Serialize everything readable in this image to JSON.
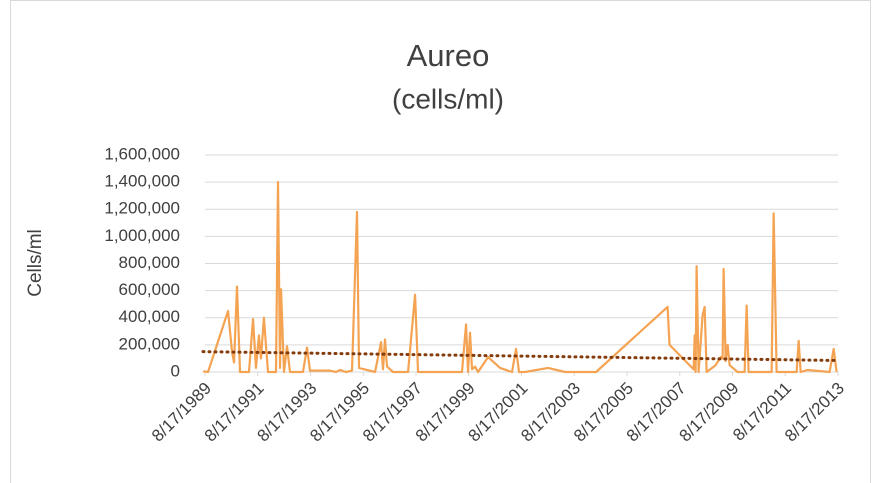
{
  "chart_data": {
    "type": "line",
    "title": "Aureo",
    "subtitle": "(cells/ml)",
    "y_label": "Cells/ml",
    "grid": true,
    "xlim": [
      "1989-08-17",
      "2013-08-17"
    ],
    "xticks": [
      {
        "value": "1989-08-17",
        "label": "8/17/1989"
      },
      {
        "value": "1991-08-17",
        "label": "8/17/1991"
      },
      {
        "value": "1993-08-17",
        "label": "8/17/1993"
      },
      {
        "value": "1995-08-17",
        "label": "8/17/1995"
      },
      {
        "value": "1997-08-17",
        "label": "8/17/1997"
      },
      {
        "value": "1999-08-17",
        "label": "8/17/1999"
      },
      {
        "value": "2001-08-17",
        "label": "8/17/2001"
      },
      {
        "value": "2003-08-17",
        "label": "8/17/2003"
      },
      {
        "value": "2005-08-17",
        "label": "8/17/2005"
      },
      {
        "value": "2007-08-17",
        "label": "8/17/2007"
      },
      {
        "value": "2009-08-17",
        "label": "8/17/2009"
      },
      {
        "value": "2011-08-17",
        "label": "8/17/2011"
      },
      {
        "value": "2013-08-17",
        "label": "8/17/2013"
      }
    ],
    "ylim": [
      0,
      1600000
    ],
    "yticks": [
      0,
      {
        "value": 200000,
        "label": "200,000"
      },
      {
        "value": 400000,
        "label": "400,000"
      },
      {
        "value": 600000,
        "label": "600,000"
      },
      {
        "value": 800000,
        "label": "800,000"
      },
      {
        "value": 1000000,
        "label": "1,000,000"
      },
      {
        "value": 1200000,
        "label": "1,200,000"
      },
      {
        "value": 1400000,
        "label": "1,400,000"
      },
      {
        "value": 1600000,
        "label": "1,600,000"
      }
    ],
    "x": [
      "1989-07-20",
      "1989-09-28",
      "1990-07-02",
      "1990-08-26",
      "1990-09-23",
      "1990-11-03",
      "1990-12-15",
      "1991-04-18",
      "1991-06-13",
      "1991-07-24",
      "1991-09-03",
      "1991-10-01",
      "1991-11-11",
      "1992-01-06",
      "1992-04-26",
      "1992-05-24",
      "1992-06-21",
      "1992-07-05",
      "1992-08-15",
      "1992-09-26",
      "1992-11-06",
      "1993-05-05",
      "1993-06-30",
      "1993-08-10",
      "1994-05-14",
      "1994-08-05",
      "1994-09-30",
      "1994-12-22",
      "1995-03-15",
      "1995-05-23",
      "1995-06-20",
      "1996-01-28",
      "1996-04-20",
      "1996-05-17",
      "1996-06-14",
      "1996-07-12",
      "1996-10-03",
      "1997-04-29",
      "1997-08-04",
      "1997-09-14",
      "1998-12-01",
      "1999-05-16",
      "1999-07-11",
      "1999-08-08",
      "1999-09-04",
      "1999-10-02",
      "1999-11-13",
      "1999-12-24",
      "2000-05-11",
      "2000-10-24",
      "2001-04-08",
      "2001-06-02",
      "2001-07-14",
      "2001-10-05",
      "2002-08-20",
      "2003-04-13",
      "2004-06-15",
      "2007-03-02",
      "2007-03-29",
      "2008-01-01",
      "2008-02-26",
      "2008-03-11",
      "2008-03-24",
      "2008-04-07",
      "2008-05-05",
      "2008-06-29",
      "2008-07-27",
      "2008-08-24",
      "2008-12-26",
      "2009-03-06",
      "2009-04-02",
      "2009-04-16",
      "2009-05-14",
      "2009-06-11",
      "2009-07-08",
      "2009-10-27",
      "2010-02-01",
      "2010-03-01",
      "2010-03-28",
      "2010-06-20",
      "2011-02-10",
      "2011-03-10",
      "2011-04-20",
      "2012-01-22",
      "2012-02-19",
      "2012-03-18",
      "2012-06-23",
      "2013-04-23",
      "2013-06-18",
      "2013-07-29"
    ],
    "series": [
      {
        "color": "#f4a352",
        "values": [
          5000,
          0,
          450000,
          150000,
          70000,
          630000,
          0,
          0,
          390000,
          30000,
          270000,
          100000,
          400000,
          0,
          0,
          1400000,
          30000,
          610000,
          0,
          190000,
          0,
          0,
          180000,
          10000,
          10000,
          0,
          15000,
          0,
          10000,
          1180000,
          30000,
          0,
          220000,
          20000,
          240000,
          40000,
          0,
          0,
          570000,
          0,
          0,
          0,
          350000,
          0,
          290000,
          20000,
          40000,
          0,
          110000,
          30000,
          0,
          170000,
          0,
          0,
          30000,
          0,
          0,
          480000,
          200000,
          50000,
          20000,
          270000,
          0,
          780000,
          0,
          420000,
          480000,
          0,
          50000,
          110000,
          100000,
          760000,
          80000,
          200000,
          50000,
          0,
          0,
          490000,
          0,
          0,
          0,
          1170000,
          0,
          0,
          230000,
          0,
          15000,
          0,
          170000,
          0
        ]
      }
    ],
    "trendline": {
      "color": "#843c0c",
      "x": [
        "1989-07-20",
        "2013-07-29"
      ],
      "values": [
        150000,
        85000
      ]
    }
  }
}
